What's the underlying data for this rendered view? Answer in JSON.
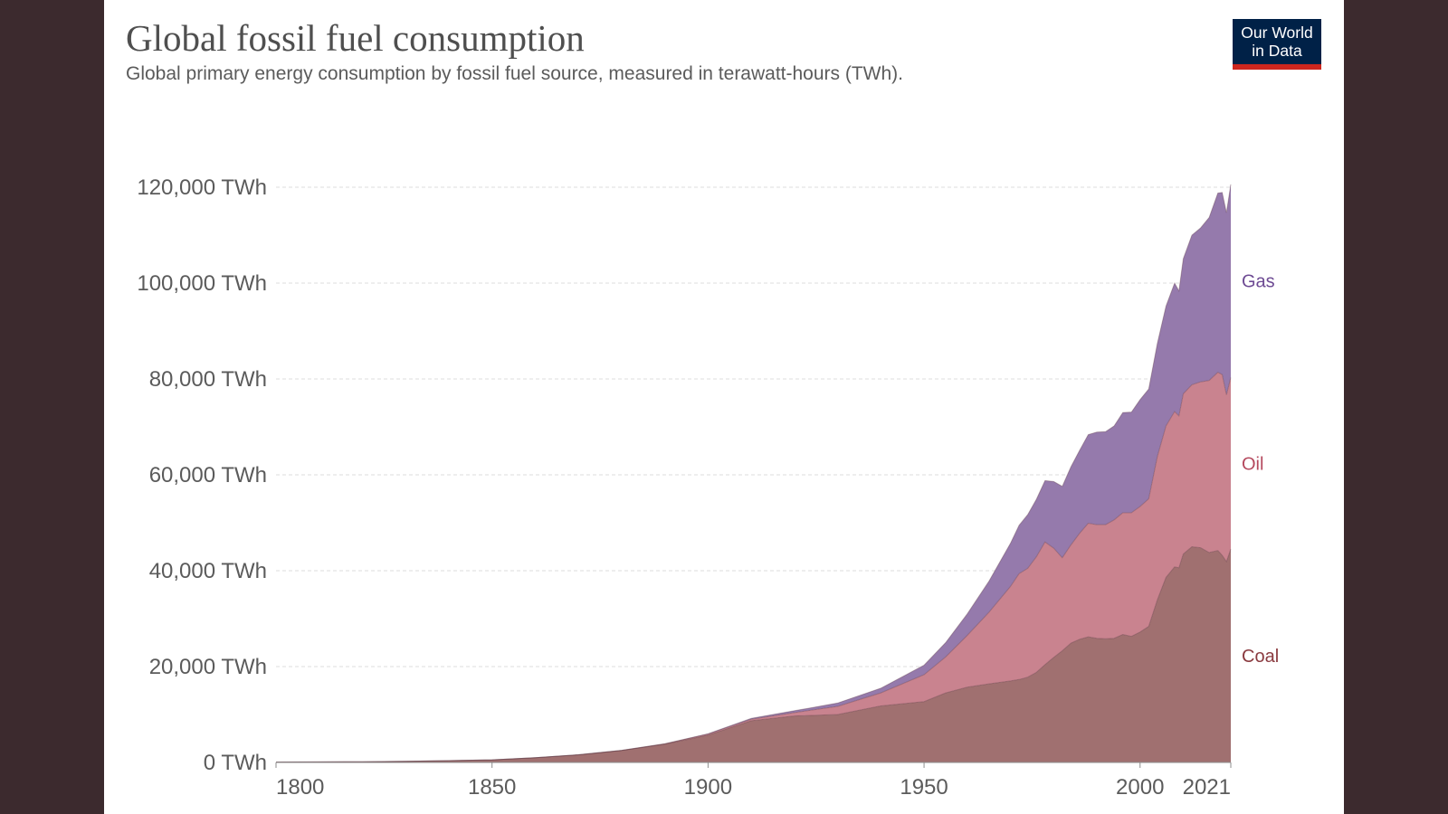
{
  "title": "Global fossil fuel consumption",
  "subtitle": "Global primary energy consumption by fossil fuel source, measured in terawatt-hours (TWh).",
  "logo": {
    "line1": "Our World",
    "line2": "in Data"
  },
  "colors": {
    "background": "#3c2a2e",
    "coal": "#a07070",
    "oil": "#c9838f",
    "gas": "#957aac",
    "coal_label": "#8a3a3f",
    "oil_label": "#b5495e",
    "gas_label": "#6d4a93",
    "logo_bg": "#002147",
    "logo_bar": "#ce261e"
  },
  "chart_data": {
    "type": "area",
    "stacked": true,
    "title": "Global fossil fuel consumption",
    "subtitle": "Global primary energy consumption by fossil fuel source, measured in terawatt-hours (TWh).",
    "xlim": [
      1800,
      2021
    ],
    "ylim": [
      0,
      120000
    ],
    "x_ticks": [
      1800,
      1850,
      1900,
      1950,
      2000,
      2021
    ],
    "y_ticks": [
      0,
      20000,
      40000,
      60000,
      80000,
      100000,
      120000
    ],
    "y_tick_labels": [
      "0 TWh",
      "20,000 TWh",
      "40,000 TWh",
      "60,000 TWh",
      "80,000 TWh",
      "100,000 TWh",
      "120,000 TWh"
    ],
    "grid": true,
    "legend": "inline-right",
    "x": [
      1800,
      1810,
      1820,
      1830,
      1840,
      1850,
      1860,
      1870,
      1880,
      1890,
      1900,
      1910,
      1920,
      1930,
      1940,
      1950,
      1955,
      1960,
      1965,
      1970,
      1972,
      1974,
      1976,
      1978,
      1980,
      1982,
      1984,
      1986,
      1988,
      1990,
      1992,
      1994,
      1996,
      1998,
      2000,
      2002,
      2004,
      2006,
      2008,
      2009,
      2010,
      2012,
      2014,
      2016,
      2018,
      2019,
      2020,
      2021
    ],
    "series": [
      {
        "name": "Coal",
        "values": [
          100,
          120,
          160,
          250,
          370,
          550,
          1000,
          1600,
          2500,
          3800,
          5700,
          8700,
          9700,
          10000,
          11800,
          12700,
          14500,
          15700,
          16400,
          17000,
          17300,
          17800,
          18800,
          20400,
          21900,
          23300,
          24900,
          25700,
          26200,
          25900,
          25800,
          25900,
          26700,
          26300,
          27200,
          28400,
          33900,
          38600,
          40800,
          40600,
          43500,
          45000,
          44800,
          43800,
          44200,
          43200,
          41900,
          44500
        ]
      },
      {
        "name": "Oil",
        "values": [
          0,
          0,
          0,
          0,
          0,
          0,
          0,
          5,
          30,
          80,
          200,
          300,
          700,
          1700,
          2700,
          5600,
          7500,
          10800,
          14900,
          19700,
          22100,
          22700,
          24100,
          25600,
          22800,
          19400,
          20500,
          22100,
          23700,
          23700,
          23800,
          24700,
          25400,
          25800,
          26200,
          26600,
          29900,
          31600,
          32400,
          31700,
          33400,
          33800,
          34600,
          35900,
          37200,
          37700,
          34800,
          35800
        ]
      },
      {
        "name": "Gas",
        "values": [
          0,
          0,
          0,
          0,
          0,
          0,
          0,
          0,
          0,
          0,
          100,
          200,
          400,
          700,
          1000,
          2000,
          3000,
          4500,
          6500,
          9000,
          10100,
          11200,
          12000,
          12800,
          13900,
          14900,
          16300,
          17300,
          18500,
          19300,
          19400,
          19600,
          20900,
          21000,
          22300,
          22900,
          23600,
          25000,
          26800,
          26100,
          28200,
          31200,
          32100,
          34000,
          37400,
          38000,
          38000,
          40300
        ]
      }
    ]
  }
}
